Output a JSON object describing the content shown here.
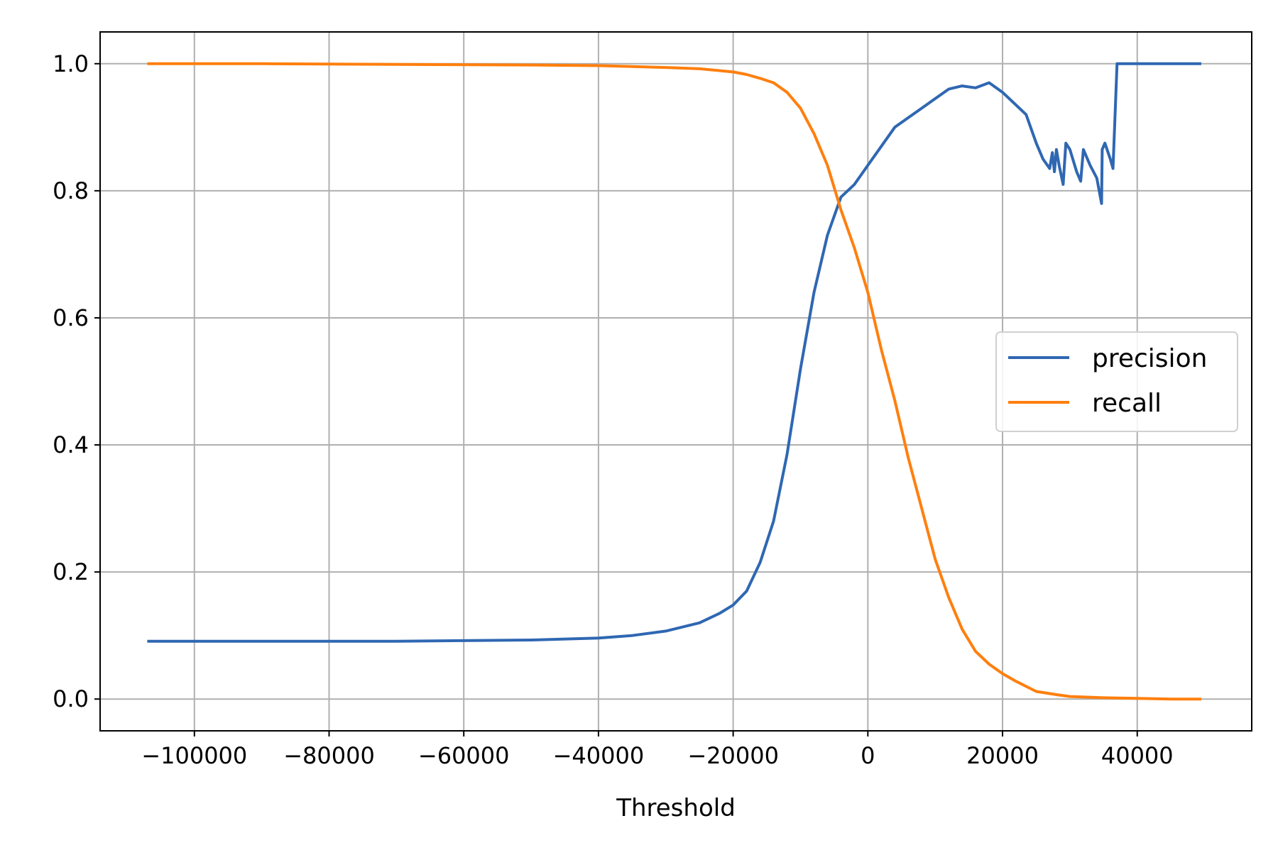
{
  "chart_data": {
    "type": "line",
    "title": "",
    "xlabel": "Threshold",
    "ylabel": "",
    "xlim": [
      -114000,
      57000
    ],
    "ylim": [
      -0.05,
      1.05
    ],
    "xticks": [
      -100000,
      -80000,
      -60000,
      -40000,
      -20000,
      0,
      20000,
      40000
    ],
    "xtick_labels": [
      "−100000",
      "−80000",
      "−60000",
      "−40000",
      "−20000",
      "0",
      "20000",
      "40000"
    ],
    "yticks": [
      0.0,
      0.2,
      0.4,
      0.6,
      0.8,
      1.0
    ],
    "ytick_labels": [
      "0.0",
      "0.2",
      "0.4",
      "0.6",
      "0.8",
      "1.0"
    ],
    "grid": true,
    "legend_position": "center-right",
    "series": [
      {
        "name": "precision",
        "color": "#2F67B2",
        "x": [
          -107000,
          -90000,
          -70000,
          -50000,
          -40000,
          -35000,
          -30000,
          -25000,
          -22000,
          -20000,
          -18000,
          -16000,
          -14000,
          -12000,
          -10000,
          -8000,
          -6000,
          -4000,
          -2000,
          0,
          2000,
          4000,
          6000,
          8000,
          10000,
          12000,
          14000,
          16000,
          18000,
          20000,
          22000,
          23500,
          25000,
          26000,
          27000,
          27400,
          27700,
          28000,
          28400,
          29000,
          29400,
          30000,
          31000,
          31600,
          32000,
          33000,
          34000,
          34700,
          34800,
          35200,
          36000,
          36400,
          37000,
          40000,
          45000,
          49500
        ],
        "y": [
          0.091,
          0.091,
          0.091,
          0.093,
          0.096,
          0.1,
          0.107,
          0.12,
          0.135,
          0.148,
          0.17,
          0.215,
          0.28,
          0.385,
          0.52,
          0.64,
          0.73,
          0.79,
          0.81,
          0.84,
          0.87,
          0.9,
          0.915,
          0.93,
          0.945,
          0.96,
          0.965,
          0.962,
          0.97,
          0.955,
          0.935,
          0.92,
          0.875,
          0.85,
          0.835,
          0.86,
          0.83,
          0.865,
          0.84,
          0.81,
          0.875,
          0.865,
          0.83,
          0.815,
          0.865,
          0.84,
          0.82,
          0.78,
          0.865,
          0.875,
          0.85,
          0.835,
          1.0,
          1.0,
          1.0,
          1.0
        ]
      },
      {
        "name": "recall",
        "color": "#FF7F0E",
        "x": [
          -107000,
          -90000,
          -70000,
          -50000,
          -40000,
          -30000,
          -25000,
          -20000,
          -18000,
          -16000,
          -14000,
          -12000,
          -10000,
          -8000,
          -6000,
          -4000,
          -2000,
          0,
          2000,
          4000,
          6000,
          8000,
          10000,
          12000,
          14000,
          16000,
          18000,
          20000,
          22000,
          25000,
          28000,
          30000,
          35000,
          40000,
          45000,
          49500
        ],
        "y": [
          1.0,
          1.0,
          0.999,
          0.998,
          0.997,
          0.994,
          0.992,
          0.987,
          0.983,
          0.977,
          0.97,
          0.955,
          0.93,
          0.89,
          0.84,
          0.77,
          0.71,
          0.64,
          0.55,
          0.47,
          0.38,
          0.3,
          0.22,
          0.16,
          0.11,
          0.075,
          0.055,
          0.04,
          0.028,
          0.012,
          0.007,
          0.004,
          0.002,
          0.001,
          0.0,
          0.0
        ]
      }
    ]
  }
}
